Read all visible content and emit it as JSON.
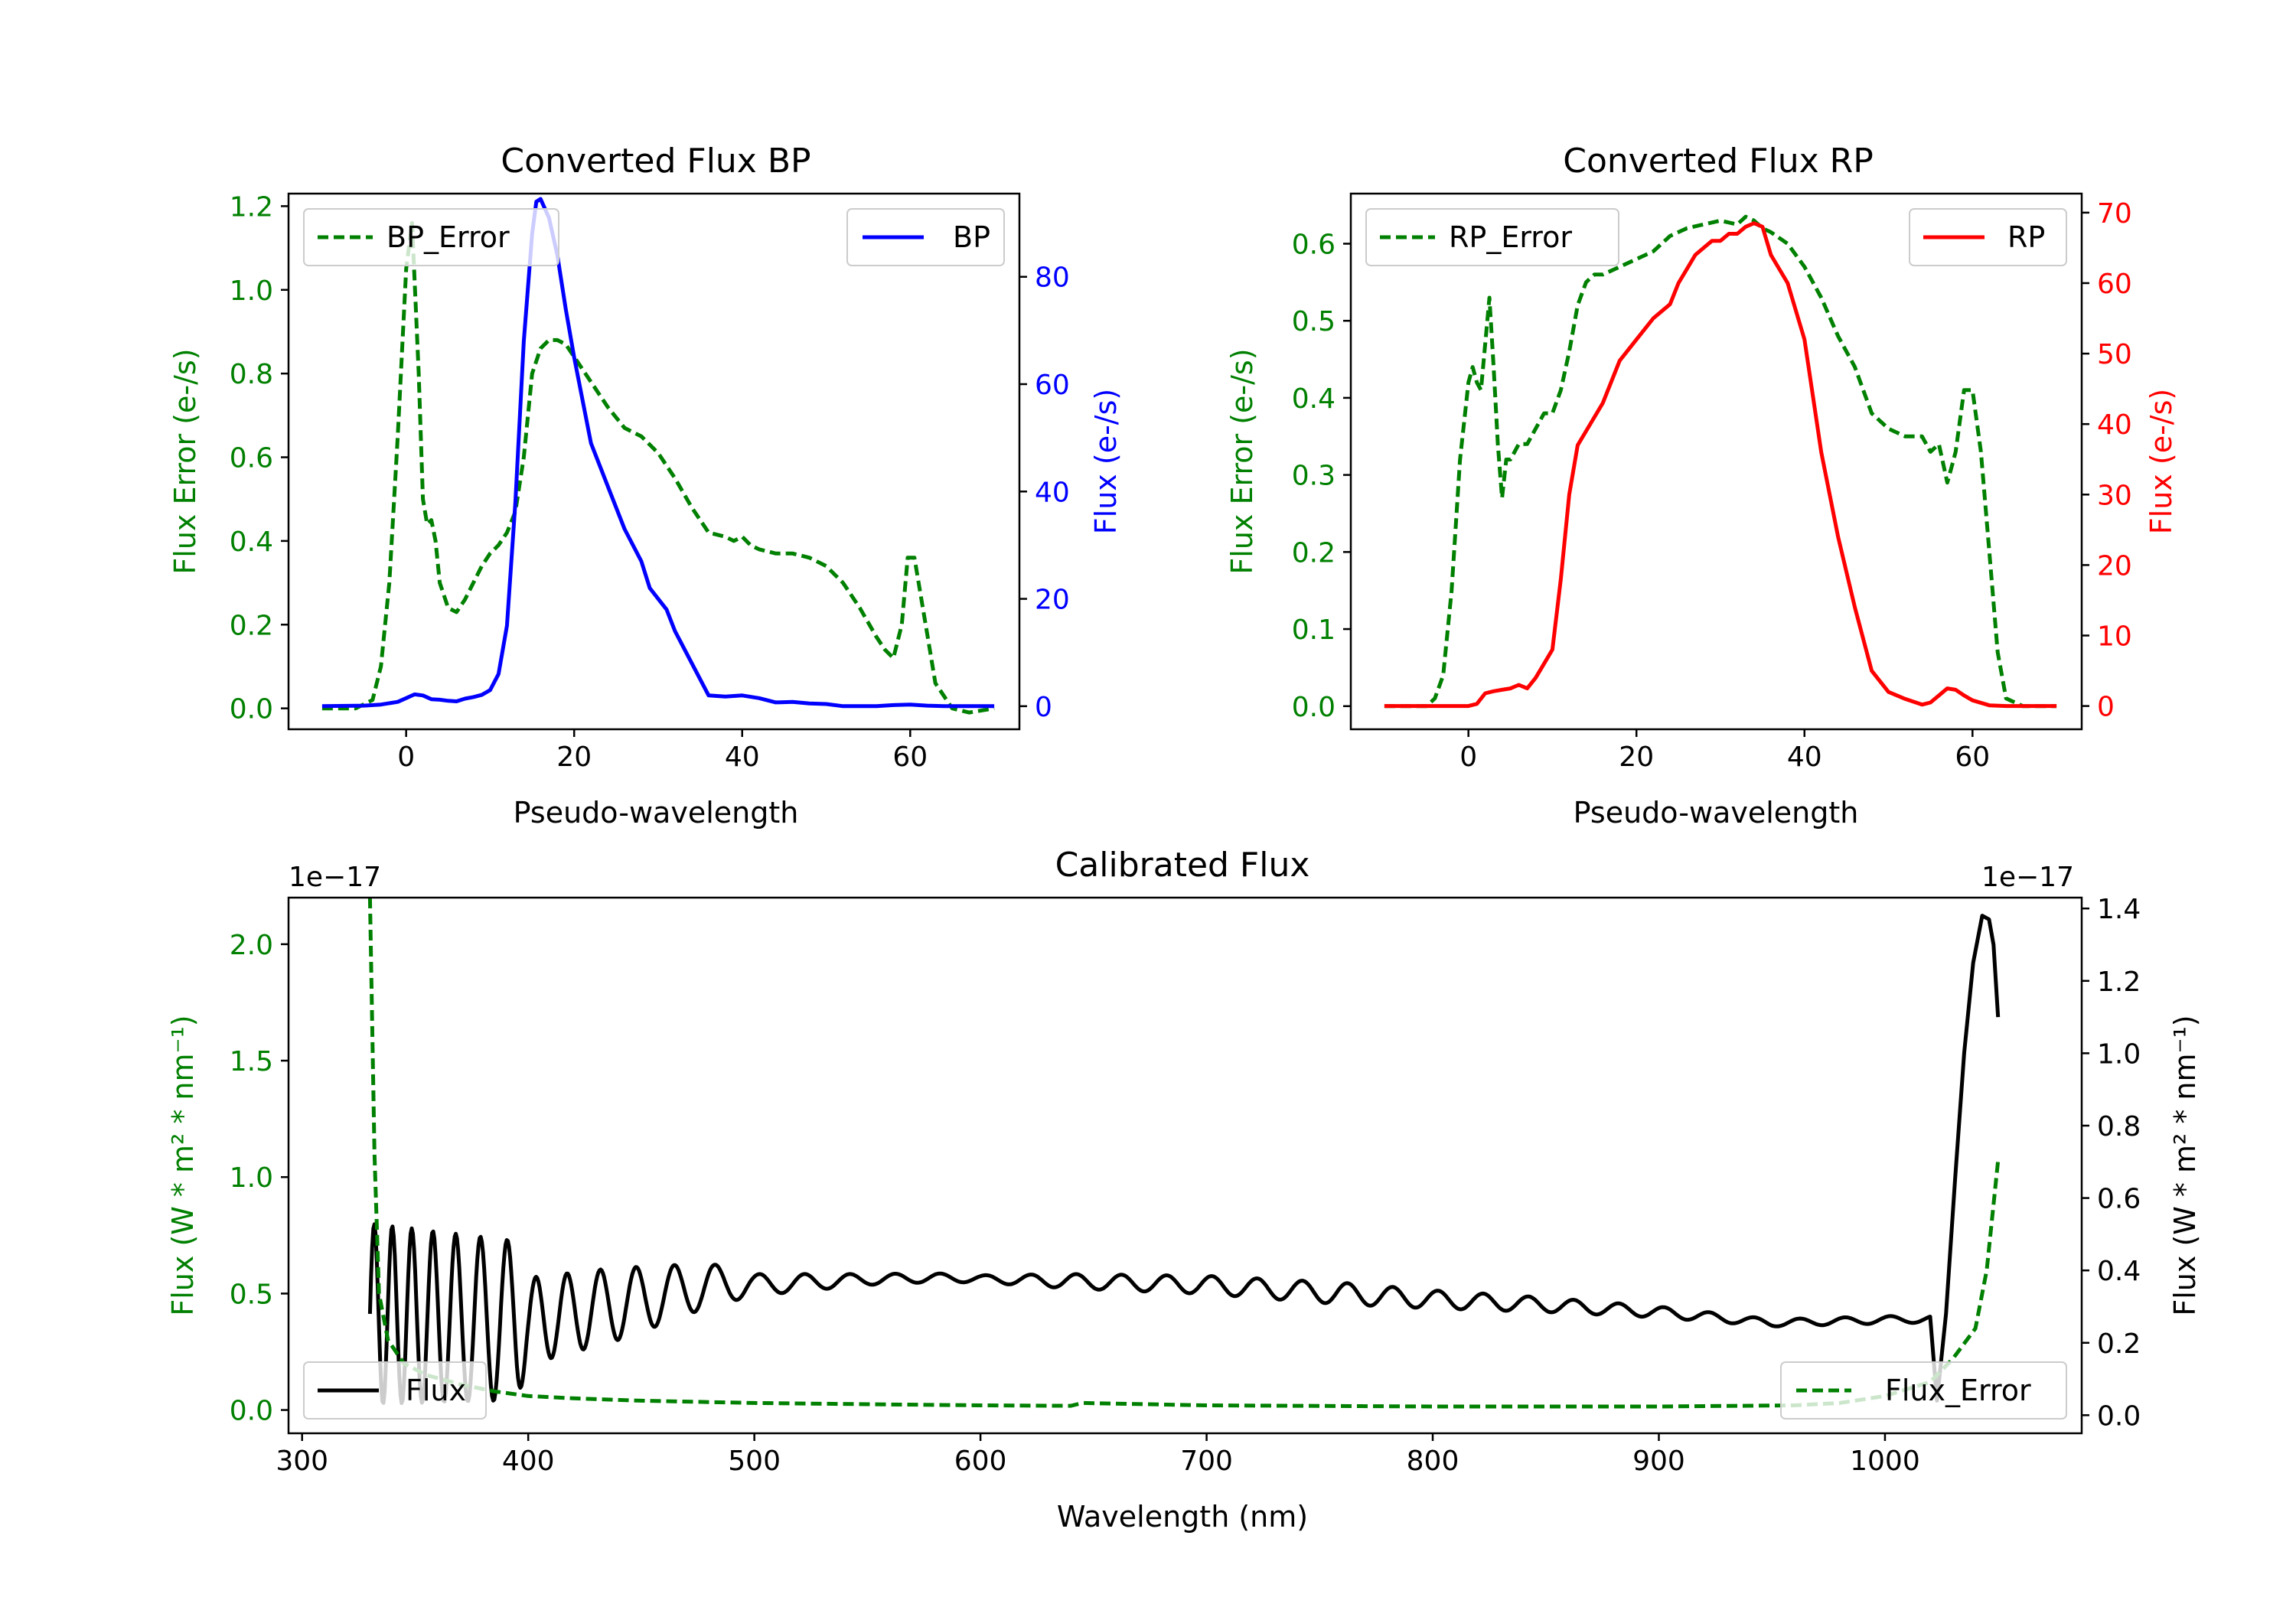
{
  "colors": {
    "green": "#008000",
    "blue": "#0000ff",
    "red": "#ff0000",
    "black": "#000000"
  },
  "chart_data": [
    {
      "id": "bp",
      "type": "line",
      "title": "Converted Flux BP",
      "xlabel": "Pseudo-wavelength",
      "ylabel_left": "Flux Error (e-/s)",
      "ylabel_right": "Flux (e-/s)",
      "xlim": [
        -14,
        73
      ],
      "xticks": [
        0,
        20,
        40,
        60
      ],
      "ylim_left": [
        -0.05,
        1.23
      ],
      "yticks_left": [
        0.0,
        0.2,
        0.4,
        0.6,
        0.8,
        1.0,
        1.2
      ],
      "ylim_right": [
        -4.3,
        95.5
      ],
      "yticks_right": [
        0,
        20,
        40,
        60,
        80
      ],
      "series": [
        {
          "name": "BP_Error",
          "axis": "left",
          "style": "dashed",
          "color": "green",
          "legend": "top-left",
          "x": [
            -10,
            -6,
            -4,
            -3,
            -2,
            -1,
            0,
            0.7,
            1.5,
            2,
            2.5,
            3,
            3.5,
            4,
            5,
            6,
            7,
            8,
            9,
            10,
            11,
            12,
            13,
            14,
            15,
            16,
            17,
            18,
            19,
            20,
            22,
            24,
            26,
            28,
            30,
            32,
            34,
            36,
            38,
            39,
            40,
            41,
            42,
            44,
            46,
            48,
            50,
            52,
            54,
            56,
            57,
            58,
            59,
            59.7,
            60.5,
            61,
            62,
            63,
            65,
            67,
            70
          ],
          "y": [
            0.0,
            0.0,
            0.02,
            0.1,
            0.3,
            0.65,
            1.05,
            1.16,
            0.8,
            0.5,
            0.44,
            0.45,
            0.4,
            0.3,
            0.24,
            0.23,
            0.26,
            0.3,
            0.34,
            0.37,
            0.39,
            0.42,
            0.47,
            0.6,
            0.8,
            0.86,
            0.88,
            0.88,
            0.87,
            0.84,
            0.78,
            0.72,
            0.67,
            0.65,
            0.61,
            0.55,
            0.48,
            0.42,
            0.41,
            0.4,
            0.41,
            0.39,
            0.38,
            0.37,
            0.37,
            0.36,
            0.34,
            0.3,
            0.24,
            0.17,
            0.14,
            0.12,
            0.2,
            0.36,
            0.36,
            0.3,
            0.18,
            0.06,
            0.0,
            -0.01,
            0.0
          ]
        },
        {
          "name": "BP",
          "axis": "right",
          "style": "solid",
          "color": "blue",
          "legend": "top-right",
          "x": [
            -10,
            -5,
            -3,
            -1,
            0,
            1,
            2,
            3,
            4,
            5,
            6,
            7,
            8,
            9,
            10,
            11,
            12,
            13,
            14,
            15,
            15.5,
            16,
            17,
            18,
            19,
            20,
            22,
            24,
            26,
            28,
            29,
            30,
            31,
            32,
            34,
            36,
            38,
            40,
            42,
            44,
            46,
            48,
            50,
            52,
            54,
            56,
            58,
            60,
            62,
            64,
            66,
            70
          ],
          "y": [
            0.0,
            0.1,
            0.3,
            0.8,
            1.5,
            2.2,
            2.0,
            1.3,
            1.2,
            1.0,
            0.9,
            1.4,
            1.7,
            2.1,
            3.0,
            6.0,
            15.0,
            38.0,
            68.0,
            88.0,
            94.0,
            94.5,
            91.0,
            84.0,
            74.0,
            65.0,
            49.0,
            41.0,
            33.0,
            27.0,
            22.0,
            20.0,
            18.0,
            14.0,
            8.0,
            2.0,
            1.8,
            2.0,
            1.5,
            0.7,
            0.8,
            0.5,
            0.4,
            0.0,
            0.0,
            0.0,
            0.2,
            0.3,
            0.1,
            0.0,
            0.0,
            0.0
          ]
        }
      ]
    },
    {
      "id": "rp",
      "type": "line",
      "title": "Converted Flux RP",
      "xlabel": "Pseudo-wavelength",
      "ylabel_left": "Flux Error (e-/s)",
      "ylabel_right": "Flux (e-/s)",
      "xlim": [
        -14,
        73
      ],
      "xticks": [
        0,
        20,
        40,
        60
      ],
      "ylim_left": [
        -0.03,
        0.665
      ],
      "yticks_left": [
        0.0,
        0.1,
        0.2,
        0.3,
        0.4,
        0.5,
        0.6
      ],
      "ylim_right": [
        -3.3,
        72.7
      ],
      "yticks_right": [
        0,
        10,
        20,
        30,
        40,
        50,
        60,
        70
      ],
      "series": [
        {
          "name": "RP_Error",
          "axis": "left",
          "style": "dashed",
          "color": "green",
          "legend": "top-left",
          "x": [
            -10,
            -5,
            -4,
            -3,
            -2,
            -1,
            0,
            0.5,
            1,
            1.5,
            2,
            2.5,
            3,
            3.5,
            4,
            4.5,
            5,
            6,
            7,
            8,
            9,
            10,
            11,
            12,
            13,
            14,
            15,
            16,
            18,
            20,
            22,
            24,
            26,
            28,
            30,
            32,
            33,
            34,
            35,
            36,
            38,
            40,
            42,
            44,
            46,
            48,
            50,
            52,
            54,
            55,
            56,
            57,
            57.5,
            58,
            59,
            60,
            61,
            62,
            63,
            64,
            66,
            70
          ],
          "y": [
            0.0,
            0.0,
            0.01,
            0.04,
            0.15,
            0.32,
            0.42,
            0.44,
            0.42,
            0.41,
            0.47,
            0.53,
            0.44,
            0.34,
            0.27,
            0.32,
            0.32,
            0.34,
            0.34,
            0.36,
            0.38,
            0.38,
            0.41,
            0.46,
            0.52,
            0.55,
            0.56,
            0.56,
            0.57,
            0.58,
            0.59,
            0.61,
            0.62,
            0.625,
            0.63,
            0.625,
            0.635,
            0.63,
            0.62,
            0.615,
            0.6,
            0.57,
            0.53,
            0.48,
            0.44,
            0.38,
            0.36,
            0.35,
            0.35,
            0.33,
            0.34,
            0.29,
            0.31,
            0.33,
            0.41,
            0.41,
            0.33,
            0.2,
            0.07,
            0.01,
            0.0,
            0.0
          ]
        },
        {
          "name": "RP",
          "axis": "right",
          "style": "solid",
          "color": "red",
          "legend": "top-right",
          "x": [
            -10,
            -5,
            0,
            1,
            2,
            3,
            4,
            5,
            6,
            7,
            8,
            9,
            10,
            11,
            12,
            13,
            14,
            16,
            18,
            20,
            22,
            23,
            24,
            25,
            26,
            27,
            28,
            29,
            30,
            31,
            32,
            33,
            34,
            35,
            36,
            38,
            40,
            42,
            44,
            46,
            48,
            50,
            52,
            54,
            55,
            56,
            57,
            58,
            59,
            60,
            62,
            64,
            66,
            68,
            70
          ],
          "y": [
            0.0,
            0.0,
            0.0,
            0.3,
            1.8,
            2.1,
            2.3,
            2.5,
            3.0,
            2.5,
            4.0,
            6.0,
            8.0,
            18.0,
            30.0,
            37.0,
            39.0,
            43.0,
            49.0,
            52.0,
            55.0,
            56.0,
            57.0,
            60.0,
            62.0,
            64.0,
            65.0,
            66.0,
            66.0,
            67.0,
            67.0,
            68.0,
            68.5,
            68.0,
            64.0,
            60.0,
            52.0,
            36.0,
            24.0,
            14.0,
            5.0,
            2.0,
            1.0,
            0.2,
            0.5,
            1.5,
            2.5,
            2.3,
            1.5,
            0.8,
            0.1,
            0.0,
            0.0,
            0.0,
            0.0
          ]
        }
      ]
    },
    {
      "id": "calibrated",
      "type": "line",
      "title": "Calibrated Flux",
      "xlabel": "Wavelength (nm)",
      "ylabel_left": "Flux (W * m² * nm⁻¹)",
      "ylabel_right": "Flux (W * m² * nm⁻¹)",
      "offset_left": "1e−17",
      "offset_right": "1e−17",
      "xlim": [
        294,
        1087
      ],
      "xticks": [
        300,
        400,
        500,
        600,
        700,
        800,
        900,
        1000
      ],
      "ylim_left": [
        -0.1,
        2.2
      ],
      "yticks_left": [
        "0.0",
        "0.5",
        "1.0",
        "1.5",
        "2.0"
      ],
      "ylim_right": [
        -0.05,
        1.43
      ],
      "yticks_right": [
        "0.0",
        "0.2",
        "0.4",
        "0.6",
        "0.8",
        "1.0",
        "1.2",
        "1.4"
      ],
      "series": [
        {
          "name": "Flux",
          "axis": "right",
          "style": "solid",
          "color": "black",
          "legend": "bottom-left",
          "oscillation": {
            "x_start": 330,
            "x_end": 1020,
            "base": [
              [
                330,
                0.28
              ],
              [
                400,
                0.26
              ],
              [
                450,
                0.32
              ],
              [
                480,
                0.36
              ],
              [
                500,
                0.36
              ],
              [
                550,
                0.375
              ],
              [
                580,
                0.38
              ],
              [
                640,
                0.37
              ],
              [
                700,
                0.36
              ],
              [
                750,
                0.34
              ],
              [
                800,
                0.32
              ],
              [
                850,
                0.305
              ],
              [
                900,
                0.285
              ],
              [
                950,
                0.255
              ],
              [
                1010,
                0.265
              ],
              [
                1020,
                0.265
              ]
            ],
            "amplitude": [
              [
                330,
                0.25
              ],
              [
                395,
                0.22
              ],
              [
                400,
                0.12
              ],
              [
                440,
                0.1
              ],
              [
                480,
                0.06
              ],
              [
                500,
                0.03
              ],
              [
                550,
                0.015
              ],
              [
                600,
                0.01
              ],
              [
                640,
                0.02
              ],
              [
                700,
                0.025
              ],
              [
                760,
                0.03
              ],
              [
                800,
                0.025
              ],
              [
                850,
                0.02
              ],
              [
                950,
                0.01
              ],
              [
                1010,
                0.01
              ],
              [
                1020,
                0.01
              ]
            ],
            "period": [
              [
                330,
                7.5
              ],
              [
                400,
                13
              ],
              [
                500,
                20
              ],
              [
                600,
                20
              ],
              [
                700,
                20
              ],
              [
                800,
                20
              ],
              [
                900,
                20
              ],
              [
                1020,
                20
              ]
            ]
          },
          "x": [
            1000,
            1005,
            1010,
            1015,
            1020,
            1023,
            1027,
            1031,
            1035,
            1039,
            1043,
            1046,
            1048,
            1050
          ],
          "y": [
            0.265,
            0.245,
            0.16,
            0.05,
            0.0,
            0.04,
            0.28,
            0.65,
            1.0,
            1.25,
            1.38,
            1.37,
            1.3,
            1.1
          ]
        },
        {
          "name": "Flux_Error",
          "axis": "left",
          "style": "dashed",
          "color": "green",
          "legend": "bottom-right",
          "x": [
            330,
            332,
            334,
            338,
            345,
            355,
            370,
            385,
            400,
            420,
            450,
            500,
            550,
            600,
            640,
            645,
            700,
            800,
            900,
            960,
            980,
            1000,
            1020,
            1030,
            1040,
            1045,
            1050
          ],
          "y": [
            2.2,
            1.1,
            0.5,
            0.3,
            0.2,
            0.15,
            0.11,
            0.08,
            0.06,
            0.05,
            0.04,
            0.03,
            0.025,
            0.02,
            0.018,
            0.03,
            0.02,
            0.015,
            0.015,
            0.02,
            0.03,
            0.06,
            0.12,
            0.22,
            0.35,
            0.6,
            1.07
          ]
        }
      ]
    }
  ]
}
